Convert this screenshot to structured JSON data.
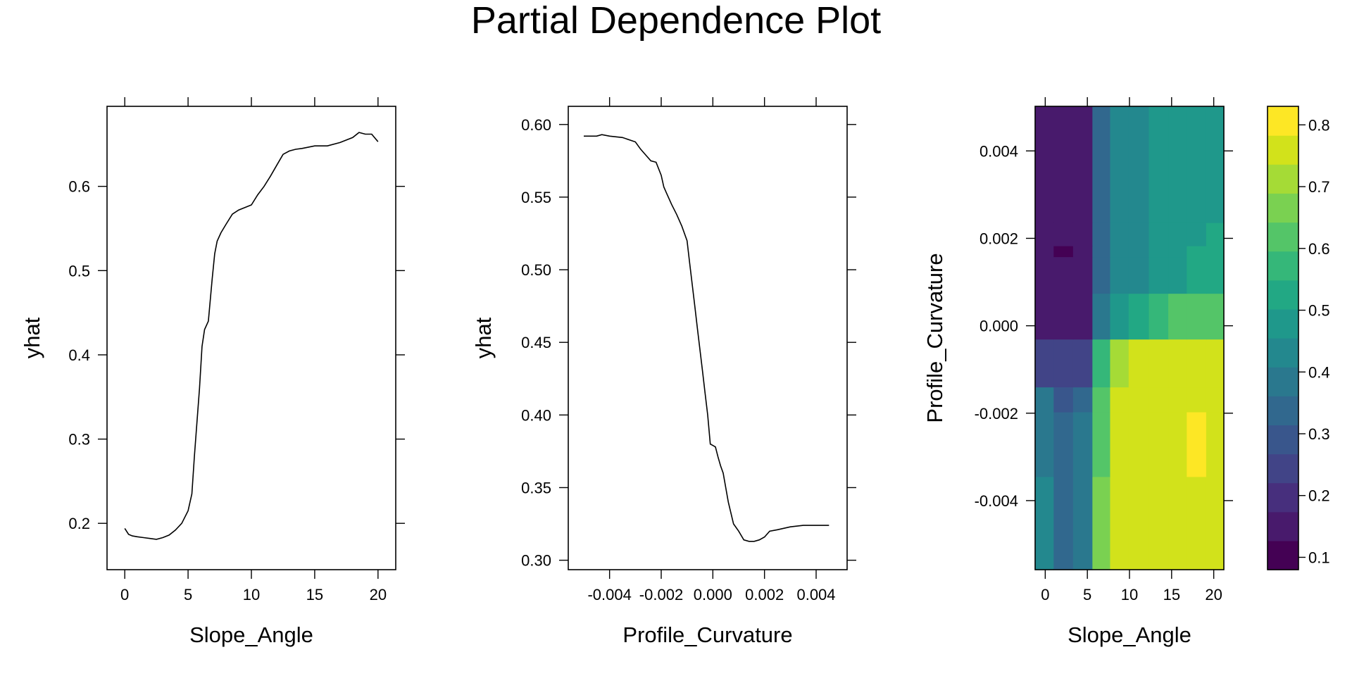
{
  "title": "Partial Dependence Plot",
  "chart_data": [
    {
      "type": "line",
      "xlabel": "Slope_Angle",
      "ylabel": "yhat",
      "xlim": [
        -1.4,
        21.4
      ],
      "ylim": [
        0.145,
        0.695
      ],
      "xticks": [
        0,
        5,
        10,
        15,
        20
      ],
      "yticks": [
        0.2,
        0.3,
        0.4,
        0.5,
        0.6
      ],
      "xtick_labels": [
        "0",
        "5",
        "10",
        "15",
        "20"
      ],
      "ytick_labels": [
        "0.2",
        "0.3",
        "0.4",
        "0.5",
        "0.6"
      ],
      "grid": false,
      "x": [
        0,
        0.3,
        0.6,
        1.0,
        1.5,
        2.0,
        2.5,
        3.0,
        3.5,
        4.0,
        4.5,
        5.0,
        5.3,
        5.5,
        5.7,
        5.9,
        6.1,
        6.3,
        6.6,
        6.9,
        7.1,
        7.3,
        7.6,
        8.0,
        8.5,
        9.0,
        9.5,
        10.0,
        10.5,
        11.0,
        11.5,
        12.0,
        12.5,
        13.0,
        13.5,
        14.0,
        15.0,
        16.0,
        17.0,
        18.0,
        18.5,
        19.0,
        19.5,
        20.0
      ],
      "y": [
        0.194,
        0.187,
        0.185,
        0.184,
        0.183,
        0.182,
        0.181,
        0.183,
        0.186,
        0.192,
        0.2,
        0.215,
        0.235,
        0.28,
        0.32,
        0.36,
        0.41,
        0.43,
        0.44,
        0.49,
        0.52,
        0.535,
        0.545,
        0.555,
        0.567,
        0.572,
        0.575,
        0.578,
        0.59,
        0.6,
        0.612,
        0.625,
        0.638,
        0.642,
        0.644,
        0.645,
        0.648,
        0.648,
        0.652,
        0.658,
        0.664,
        0.662,
        0.662,
        0.653
      ]
    },
    {
      "type": "line",
      "xlabel": "Profile_Curvature",
      "ylabel": "yhat",
      "xlim": [
        -0.0056,
        0.0052
      ],
      "ylim": [
        0.2935,
        0.6125
      ],
      "xticks": [
        -0.004,
        -0.002,
        0.0,
        0.002,
        0.004
      ],
      "yticks": [
        0.3,
        0.35,
        0.4,
        0.45,
        0.5,
        0.55,
        0.6
      ],
      "xtick_labels": [
        "-0.004",
        "-0.002",
        "0.000",
        "0.002",
        "0.004"
      ],
      "ytick_labels": [
        "0.30",
        "0.35",
        "0.40",
        "0.45",
        "0.50",
        "0.55",
        "0.60"
      ],
      "grid": false,
      "x": [
        -0.005,
        -0.0045,
        -0.0043,
        -0.004,
        -0.0035,
        -0.003,
        -0.0028,
        -0.0026,
        -0.0024,
        -0.0022,
        -0.002,
        -0.0019,
        -0.0018,
        -0.0016,
        -0.0014,
        -0.0012,
        -0.001,
        -0.0009,
        -0.0008,
        -0.0007,
        -0.0006,
        -0.0005,
        -0.0004,
        -0.0003,
        -0.0002,
        -0.0001,
        0.0,
        0.0001,
        0.0002,
        0.0003,
        0.0004,
        0.0006,
        0.0008,
        0.001,
        0.0012,
        0.0014,
        0.0016,
        0.0018,
        0.002,
        0.0022,
        0.0025,
        0.003,
        0.0035,
        0.004,
        0.0045
      ],
      "y": [
        0.592,
        0.592,
        0.593,
        0.592,
        0.591,
        0.588,
        0.583,
        0.579,
        0.575,
        0.574,
        0.565,
        0.557,
        0.553,
        0.545,
        0.538,
        0.53,
        0.52,
        0.505,
        0.49,
        0.475,
        0.46,
        0.445,
        0.43,
        0.415,
        0.4,
        0.38,
        0.379,
        0.378,
        0.371,
        0.365,
        0.36,
        0.34,
        0.325,
        0.32,
        0.314,
        0.313,
        0.313,
        0.314,
        0.316,
        0.32,
        0.321,
        0.323,
        0.324,
        0.324,
        0.324
      ]
    },
    {
      "type": "heatmap",
      "xlabel": "Slope_Angle",
      "ylabel": "Profile_Curvature",
      "xlim": [
        -1.2,
        21.2
      ],
      "ylim": [
        -0.00558,
        0.00502
      ],
      "xticks": [
        0,
        5,
        10,
        15,
        20
      ],
      "yticks": [
        -0.004,
        -0.002,
        0.0,
        0.002,
        0.004
      ],
      "xtick_labels": [
        "0",
        "5",
        "10",
        "15",
        "20"
      ],
      "ytick_labels": [
        "-0.004",
        "-0.002",
        "0.000",
        "0.002",
        "0.004"
      ],
      "x_edges": [
        -1.2,
        1.0,
        3.3,
        5.6,
        7.7,
        9.9,
        12.3,
        14.6,
        16.8,
        19.1,
        21.2
      ],
      "y_edges": [
        -0.00558,
        -0.00345,
        -0.00226,
        -0.00197,
        -0.0014,
        -0.000305,
        0.000742,
        0.00158,
        0.00183,
        0.00236,
        0.00502
      ],
      "z": [
        [
          0.42,
          0.35,
          0.38,
          0.65,
          0.76,
          0.77,
          0.77,
          0.77,
          0.77,
          0.77
        ],
        [
          0.37,
          0.33,
          0.38,
          0.63,
          0.76,
          0.77,
          0.77,
          0.77,
          0.82,
          0.77
        ],
        [
          0.38,
          0.32,
          0.38,
          0.63,
          0.76,
          0.77,
          0.77,
          0.77,
          0.82,
          0.77
        ],
        [
          0.37,
          0.27,
          0.35,
          0.61,
          0.75,
          0.77,
          0.77,
          0.77,
          0.77,
          0.77
        ],
        [
          0.24,
          0.24,
          0.24,
          0.57,
          0.7,
          0.74,
          0.74,
          0.74,
          0.74,
          0.74
        ],
        [
          0.15,
          0.15,
          0.15,
          0.4,
          0.48,
          0.52,
          0.56,
          0.6,
          0.6,
          0.6
        ],
        [
          0.15,
          0.15,
          0.15,
          0.35,
          0.44,
          0.44,
          0.47,
          0.47,
          0.52,
          0.52
        ],
        [
          0.15,
          0.11,
          0.15,
          0.35,
          0.44,
          0.44,
          0.47,
          0.47,
          0.52,
          0.52
        ],
        [
          0.15,
          0.15,
          0.15,
          0.35,
          0.44,
          0.44,
          0.47,
          0.47,
          0.5,
          0.52
        ],
        [
          0.15,
          0.15,
          0.15,
          0.35,
          0.44,
          0.44,
          0.47,
          0.47,
          0.5,
          0.5
        ]
      ],
      "colorbar": {
        "ticks": [
          0.1,
          0.2,
          0.3,
          0.4,
          0.5,
          0.6,
          0.7,
          0.8
        ],
        "tick_labels": [
          "0.1",
          "0.2",
          "0.3",
          "0.4",
          "0.5",
          "0.6",
          "0.7",
          "0.8"
        ],
        "range": [
          0.08,
          0.83
        ],
        "colors": [
          "#440154",
          "#481A6C",
          "#472F7D",
          "#414487",
          "#39568C",
          "#31688E",
          "#2A788E",
          "#23888E",
          "#1F988B",
          "#22A884",
          "#35B779",
          "#54C568",
          "#7AD151",
          "#A5DB36",
          "#D2E21B",
          "#FDE725"
        ]
      }
    }
  ]
}
